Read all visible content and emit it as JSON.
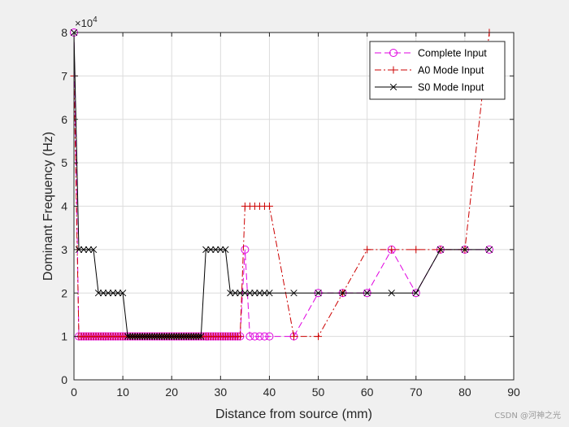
{
  "chart_data": {
    "type": "line",
    "xlabel": "Distance from source (mm)",
    "ylabel": "Dominant Frequency (Hz)",
    "xlim": [
      0,
      90
    ],
    "ylim": [
      0,
      8
    ],
    "y_exponent_label": "×10",
    "y_exponent_power": "4",
    "y_scale": 10000,
    "grid": true,
    "legend_position": "top-right",
    "x_ticks": [
      0,
      10,
      20,
      30,
      40,
      50,
      60,
      70,
      80,
      90
    ],
    "y_ticks": [
      0,
      1,
      2,
      3,
      4,
      5,
      6,
      7,
      8
    ],
    "series": [
      {
        "name": "Complete Input",
        "color": "#e000e0",
        "line": "dashed",
        "marker": "circle",
        "x": [
          0,
          1,
          1.5,
          2,
          2.5,
          3,
          3.5,
          4,
          4.5,
          5,
          5.5,
          6,
          6.5,
          7,
          7.5,
          8,
          8.5,
          9,
          9.5,
          10,
          10.5,
          11,
          11.5,
          12,
          12.5,
          13,
          13.5,
          14,
          14.5,
          15,
          15.5,
          16,
          16.5,
          17,
          17.5,
          18,
          18.5,
          19,
          19.5,
          20,
          20.5,
          21,
          21.5,
          22,
          22.5,
          23,
          23.5,
          24,
          24.5,
          25,
          25.5,
          26,
          26.5,
          27,
          27.5,
          28,
          28.5,
          29,
          29.5,
          30,
          30.5,
          31,
          31.5,
          32,
          32.5,
          33,
          33.5,
          34,
          35,
          36,
          37,
          38,
          39,
          40,
          45,
          50,
          55,
          60,
          65,
          70,
          75,
          80,
          85
        ],
        "values": [
          8,
          1,
          1,
          1,
          1,
          1,
          1,
          1,
          1,
          1,
          1,
          1,
          1,
          1,
          1,
          1,
          1,
          1,
          1,
          1,
          1,
          1,
          1,
          1,
          1,
          1,
          1,
          1,
          1,
          1,
          1,
          1,
          1,
          1,
          1,
          1,
          1,
          1,
          1,
          1,
          1,
          1,
          1,
          1,
          1,
          1,
          1,
          1,
          1,
          1,
          1,
          1,
          1,
          1,
          1,
          1,
          1,
          1,
          1,
          1,
          1,
          1,
          1,
          1,
          1,
          1,
          1,
          1,
          3,
          1,
          1,
          1,
          1,
          1,
          1,
          2,
          2,
          2,
          3,
          2,
          3,
          3,
          3
        ]
      },
      {
        "name": "A0 Mode Input",
        "color": "#cc0000",
        "line": "dashdot",
        "marker": "plus",
        "x": [
          0,
          1,
          1.5,
          2,
          2.5,
          3,
          3.5,
          4,
          4.5,
          5,
          5.5,
          6,
          6.5,
          7,
          7.5,
          8,
          8.5,
          9,
          9.5,
          10,
          10.5,
          11,
          11.5,
          12,
          12.5,
          13,
          13.5,
          14,
          14.5,
          15,
          15.5,
          16,
          16.5,
          17,
          17.5,
          18,
          18.5,
          19,
          19.5,
          20,
          20.5,
          21,
          21.5,
          22,
          22.5,
          23,
          23.5,
          24,
          24.5,
          25,
          25.5,
          26,
          26.5,
          27,
          27.5,
          28,
          28.5,
          29,
          29.5,
          30,
          30.5,
          31,
          31.5,
          32,
          32.5,
          33,
          33.5,
          34,
          35,
          36,
          37,
          38,
          39,
          40,
          45,
          50,
          55,
          60,
          65,
          70,
          75,
          80,
          85
        ],
        "values": [
          7,
          1,
          1,
          1,
          1,
          1,
          1,
          1,
          1,
          1,
          1,
          1,
          1,
          1,
          1,
          1,
          1,
          1,
          1,
          1,
          1,
          1,
          1,
          1,
          1,
          1,
          1,
          1,
          1,
          1,
          1,
          1,
          1,
          1,
          1,
          1,
          1,
          1,
          1,
          1,
          1,
          1,
          1,
          1,
          1,
          1,
          1,
          1,
          1,
          1,
          1,
          1,
          1,
          1,
          1,
          1,
          1,
          1,
          1,
          1,
          1,
          1,
          1,
          1,
          1,
          1,
          1,
          1,
          4,
          4,
          4,
          4,
          4,
          4,
          1,
          1,
          2,
          3,
          3,
          3,
          3,
          3,
          8
        ]
      },
      {
        "name": "S0 Mode Input",
        "color": "#000000",
        "line": "solid",
        "marker": "x",
        "x": [
          0,
          1,
          2,
          3,
          4,
          5,
          6,
          7,
          8,
          9,
          10,
          11,
          11.5,
          12,
          12.5,
          13,
          13.5,
          14,
          14.5,
          15,
          15.5,
          16,
          16.5,
          17,
          17.5,
          18,
          18.5,
          19,
          19.5,
          20,
          20.5,
          21,
          21.5,
          22,
          22.5,
          23,
          23.5,
          24,
          24.5,
          25,
          25.5,
          26,
          27,
          28,
          29,
          30,
          31,
          32,
          33,
          34,
          35,
          36,
          37,
          38,
          39,
          40,
          45,
          50,
          55,
          60,
          65,
          70,
          75,
          80,
          85
        ],
        "values": [
          8,
          3,
          3,
          3,
          3,
          2,
          2,
          2,
          2,
          2,
          2,
          1,
          1,
          1,
          1,
          1,
          1,
          1,
          1,
          1,
          1,
          1,
          1,
          1,
          1,
          1,
          1,
          1,
          1,
          1,
          1,
          1,
          1,
          1,
          1,
          1,
          1,
          1,
          1,
          1,
          1,
          1,
          3,
          3,
          3,
          3,
          3,
          2,
          2,
          2,
          2,
          2,
          2,
          2,
          2,
          2,
          2,
          2,
          2,
          2,
          2,
          2,
          3,
          3,
          3
        ]
      }
    ]
  },
  "watermark": "CSDN @河神之光"
}
